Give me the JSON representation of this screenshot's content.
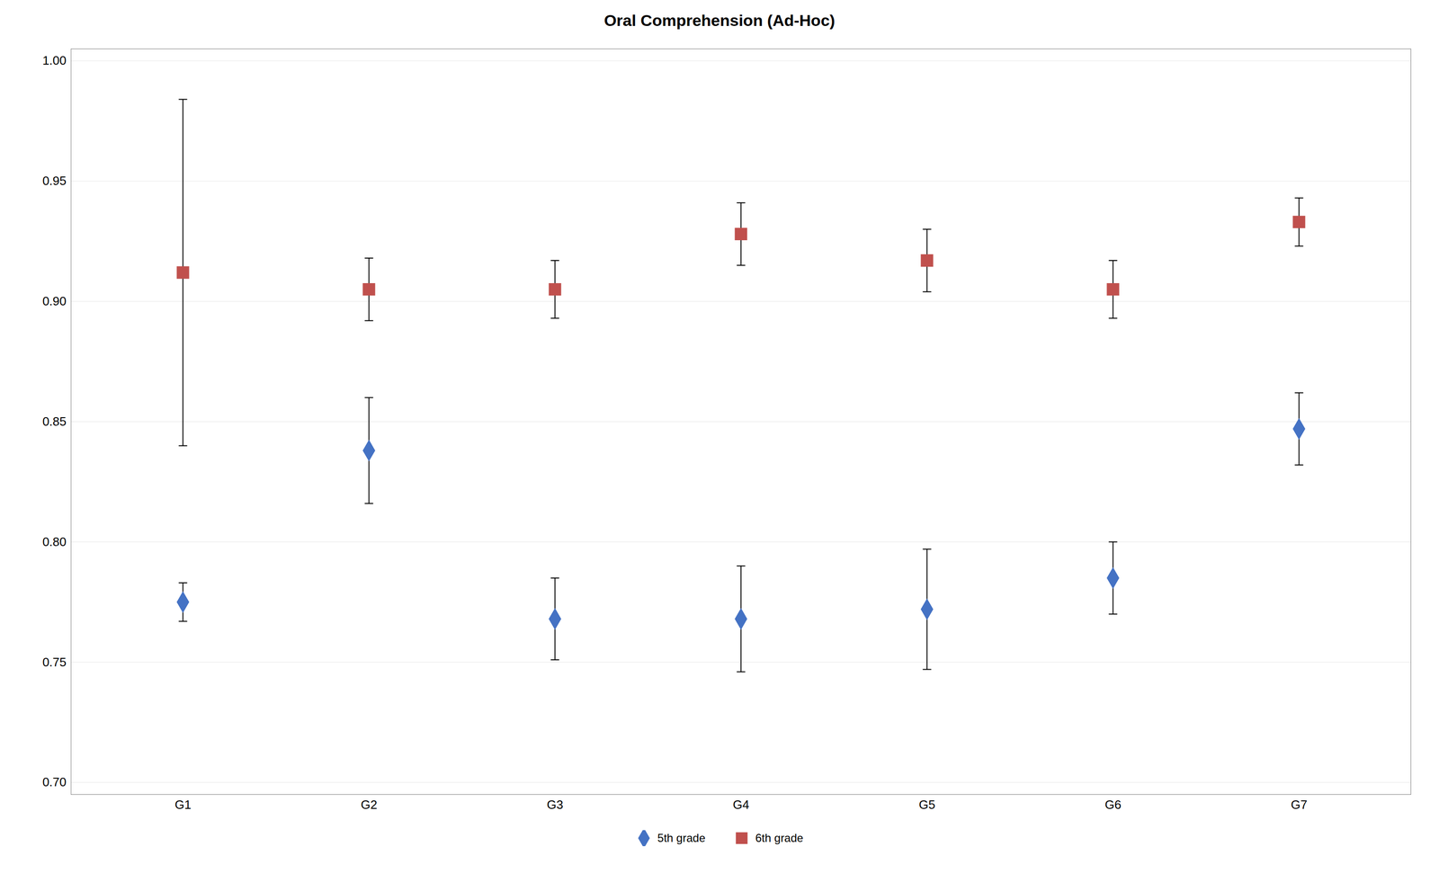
{
  "chart_data": {
    "type": "scatter",
    "title": "Oral Comprehension (Ad-Hoc)",
    "categories": [
      "G1",
      "G2",
      "G3",
      "G4",
      "G5",
      "G6",
      "G7"
    ],
    "series": [
      {
        "name": "5th grade",
        "color": "#4472C4",
        "marker": "diamond",
        "values": [
          0.775,
          0.838,
          0.768,
          0.768,
          0.772,
          0.785,
          0.847
        ],
        "errors": [
          0.008,
          0.022,
          0.017,
          0.022,
          0.025,
          0.015,
          0.015
        ]
      },
      {
        "name": "6th grade",
        "color": "#C0504D",
        "marker": "square",
        "values": [
          0.912,
          0.905,
          0.905,
          0.928,
          0.917,
          0.905,
          0.933
        ],
        "errors": [
          0.072,
          0.013,
          0.012,
          0.013,
          0.013,
          0.012,
          0.01
        ]
      }
    ],
    "ylim": [
      0.695,
      1.005
    ],
    "yticks": [
      {
        "value": 0.7,
        "label": "0.70"
      },
      {
        "value": 0.75,
        "label": "0.75"
      },
      {
        "value": 0.8,
        "label": "0.80"
      },
      {
        "value": 0.85,
        "label": "0.85"
      },
      {
        "value": 0.9,
        "label": "0.90"
      },
      {
        "value": 0.95,
        "label": "0.95"
      },
      {
        "value": 1.0,
        "label": "1.00"
      }
    ],
    "grid": true,
    "legend": "bottom"
  }
}
